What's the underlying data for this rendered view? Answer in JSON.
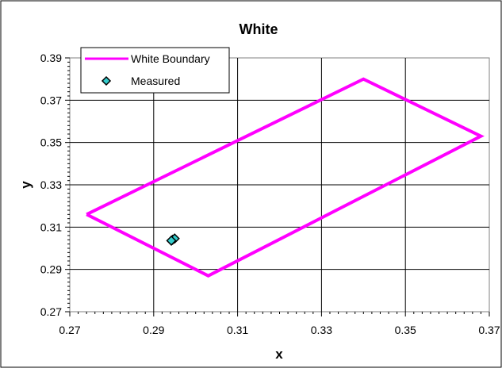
{
  "chart_data": {
    "type": "scatter",
    "title": "White",
    "xlabel": "x",
    "ylabel": "y",
    "xlim": [
      0.27,
      0.37
    ],
    "ylim": [
      0.27,
      0.39
    ],
    "xticks": [
      "0.27",
      "0.29",
      "0.31",
      "0.33",
      "0.35",
      "0.37"
    ],
    "yticks": [
      "0.27",
      "0.29",
      "0.31",
      "0.33",
      "0.35",
      "0.37",
      "0.39"
    ],
    "grid": true,
    "legend_position": "top-left",
    "series": [
      {
        "name": "White Boundary",
        "kind": "line",
        "color": "#ff00ff",
        "x": [
          0.274,
          0.34,
          0.368,
          0.303,
          0.274
        ],
        "y": [
          0.316,
          0.38,
          0.353,
          0.287,
          0.316
        ]
      },
      {
        "name": "Measured",
        "kind": "marker",
        "marker": "diamond",
        "color": "#33cccc",
        "x": [
          0.2945,
          0.295,
          0.2942
        ],
        "y": [
          0.304,
          0.3046,
          0.3036
        ]
      }
    ]
  }
}
